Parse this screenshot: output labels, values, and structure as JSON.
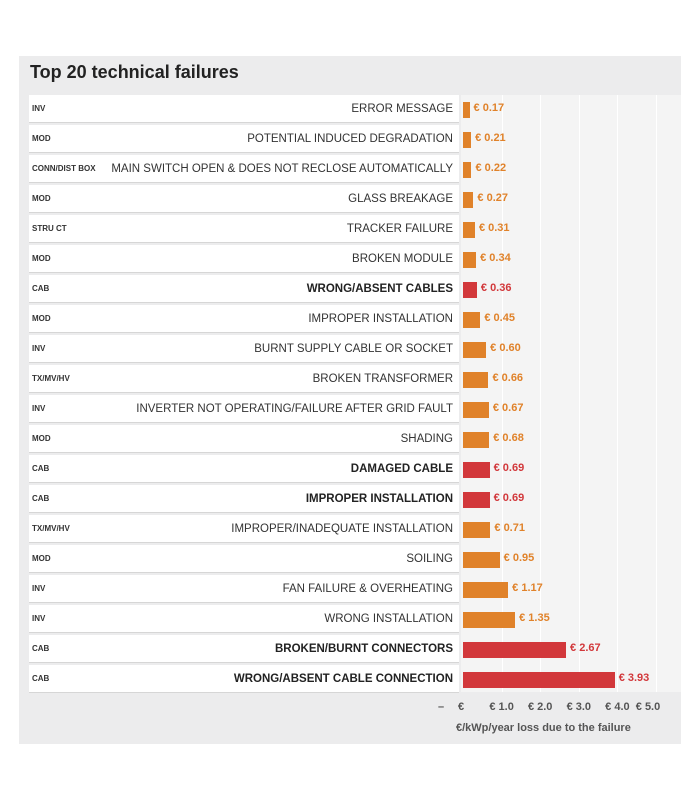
{
  "chart_data": {
    "type": "bar",
    "orientation": "horizontal",
    "title": "Top 20 technical failures",
    "xlabel": "€/kWp/year loss due to the failure",
    "xlim": [
      0,
      5.0
    ],
    "x_ticks": [
      "–",
      "€",
      "€ 1.0",
      "€ 2.0",
      "€ 3.0",
      "€ 4.0",
      "€ 5.0"
    ],
    "colors": {
      "default": "#e0822a",
      "highlight": "#d2383b"
    },
    "rows": [
      {
        "group": "INV",
        "label": "ERROR MESSAGE",
        "value": 0.17,
        "value_label": "€ 0.17",
        "highlight": false
      },
      {
        "group": "MOD",
        "label": "POTENTIAL INDUCED DEGRADATION",
        "value": 0.21,
        "value_label": "€ 0.21",
        "highlight": false
      },
      {
        "group": "CONN/DIST BOX",
        "label": "MAIN SWITCH OPEN & DOES NOT RECLOSE AUTOMATICALLY",
        "value": 0.22,
        "value_label": "€ 0.22",
        "highlight": false
      },
      {
        "group": "MOD",
        "label": "GLASS BREAKAGE",
        "value": 0.27,
        "value_label": "€ 0.27",
        "highlight": false
      },
      {
        "group": "STRU CT",
        "label": "TRACKER FAILURE",
        "value": 0.31,
        "value_label": "€ 0.31",
        "highlight": false
      },
      {
        "group": "MOD",
        "label": "BROKEN MODULE",
        "value": 0.34,
        "value_label": "€ 0.34",
        "highlight": false
      },
      {
        "group": "CAB",
        "label": "WRONG/ABSENT CABLES",
        "value": 0.36,
        "value_label": "€ 0.36",
        "highlight": true
      },
      {
        "group": "MOD",
        "label": "IMPROPER INSTALLATION",
        "value": 0.45,
        "value_label": "€ 0.45",
        "highlight": false
      },
      {
        "group": "INV",
        "label": "BURNT SUPPLY CABLE OR SOCKET",
        "value": 0.6,
        "value_label": "€ 0.60",
        "highlight": false
      },
      {
        "group": "TX/MV/HV",
        "label": "BROKEN TRANSFORMER",
        "value": 0.66,
        "value_label": "€ 0.66",
        "highlight": false
      },
      {
        "group": "INV",
        "label": "INVERTER NOT OPERATING/FAILURE AFTER GRID FAULT",
        "value": 0.67,
        "value_label": "€ 0.67",
        "highlight": false
      },
      {
        "group": "MOD",
        "label": "SHADING",
        "value": 0.68,
        "value_label": "€ 0.68",
        "highlight": false
      },
      {
        "group": "CAB",
        "label": "DAMAGED CABLE",
        "value": 0.69,
        "value_label": "€ 0.69",
        "highlight": true
      },
      {
        "group": "CAB",
        "label": "IMPROPER INSTALLATION",
        "value": 0.69,
        "value_label": "€ 0.69",
        "highlight": true
      },
      {
        "group": "TX/MV/HV",
        "label": "IMPROPER/INADEQUATE INSTALLATION",
        "value": 0.71,
        "value_label": "€ 0.71",
        "highlight": false
      },
      {
        "group": "MOD",
        "label": "SOILING",
        "value": 0.95,
        "value_label": "€ 0.95",
        "highlight": false
      },
      {
        "group": "INV",
        "label": "FAN FAILURE & OVERHEATING",
        "value": 1.17,
        "value_label": "€ 1.17",
        "highlight": false
      },
      {
        "group": "INV",
        "label": "WRONG INSTALLATION",
        "value": 1.35,
        "value_label": "€ 1.35",
        "highlight": false
      },
      {
        "group": "CAB",
        "label": "BROKEN/BURNT CONNECTORS",
        "value": 2.67,
        "value_label": "€ 2.67",
        "highlight": true
      },
      {
        "group": "CAB",
        "label": "WRONG/ABSENT CABLE CONNECTION",
        "value": 3.93,
        "value_label": "€ 3.93",
        "highlight": true
      }
    ]
  }
}
